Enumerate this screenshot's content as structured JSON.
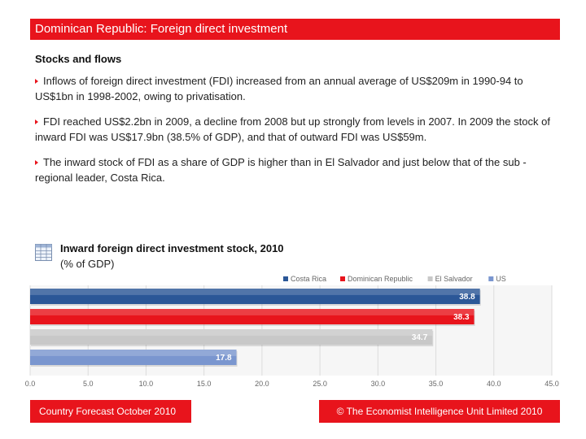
{
  "header": {
    "title": "Dominican Republic: Foreign direct investment"
  },
  "section": {
    "subtitle": "Stocks and flows"
  },
  "bullets": [
    "Inflows of foreign direct investment (FDI) increased from an annual average of US$209m in 1990-94 to US$1bn in 1998-2002, owing to privatisation.",
    "FDI reached US$2.2bn in 2009, a decline from 2008 but up strongly from levels in 2007. In 2009 the stock of inward FDI was US$17.9bn (38.5% of GDP), and that of outward FDI was US$59m.",
    "The inward stock of FDI as a share of GDP is higher than in El Salvador and just below that of the sub -regional leader, Costa Rica."
  ],
  "chart_icon": "table-icon",
  "chart_data": {
    "type": "bar",
    "orientation": "horizontal",
    "title": "Inward foreign direct investment stock, 2010",
    "unit": "(% of GDP)",
    "categories": [
      "Costa Rica",
      "Dominican Republic",
      "El Salvador",
      "US"
    ],
    "values": [
      38.8,
      38.3,
      34.7,
      17.8
    ],
    "value_labels": [
      "38.8",
      "38.3",
      "34.7",
      "17.8"
    ],
    "colors": [
      "#2b5797",
      "#e8141c",
      "#c8c8c8",
      "#7a96cf"
    ],
    "legend": [
      "Costa Rica",
      "Dominican Republic",
      "El Salvador",
      "US"
    ],
    "legend_position": "top-right",
    "xlim": [
      0,
      45
    ],
    "ticks": [
      0,
      5,
      10,
      15,
      20,
      25,
      30,
      35,
      40,
      45
    ],
    "tick_labels": [
      "0.0",
      "5.0",
      "10.0",
      "15.0",
      "20.0",
      "25.0",
      "30.0",
      "35.0",
      "40.0",
      "45.0"
    ],
    "grid": true
  },
  "footer": {
    "left": "Country Forecast October 2010",
    "right": "© The Economist Intelligence Unit Limited 2010"
  }
}
